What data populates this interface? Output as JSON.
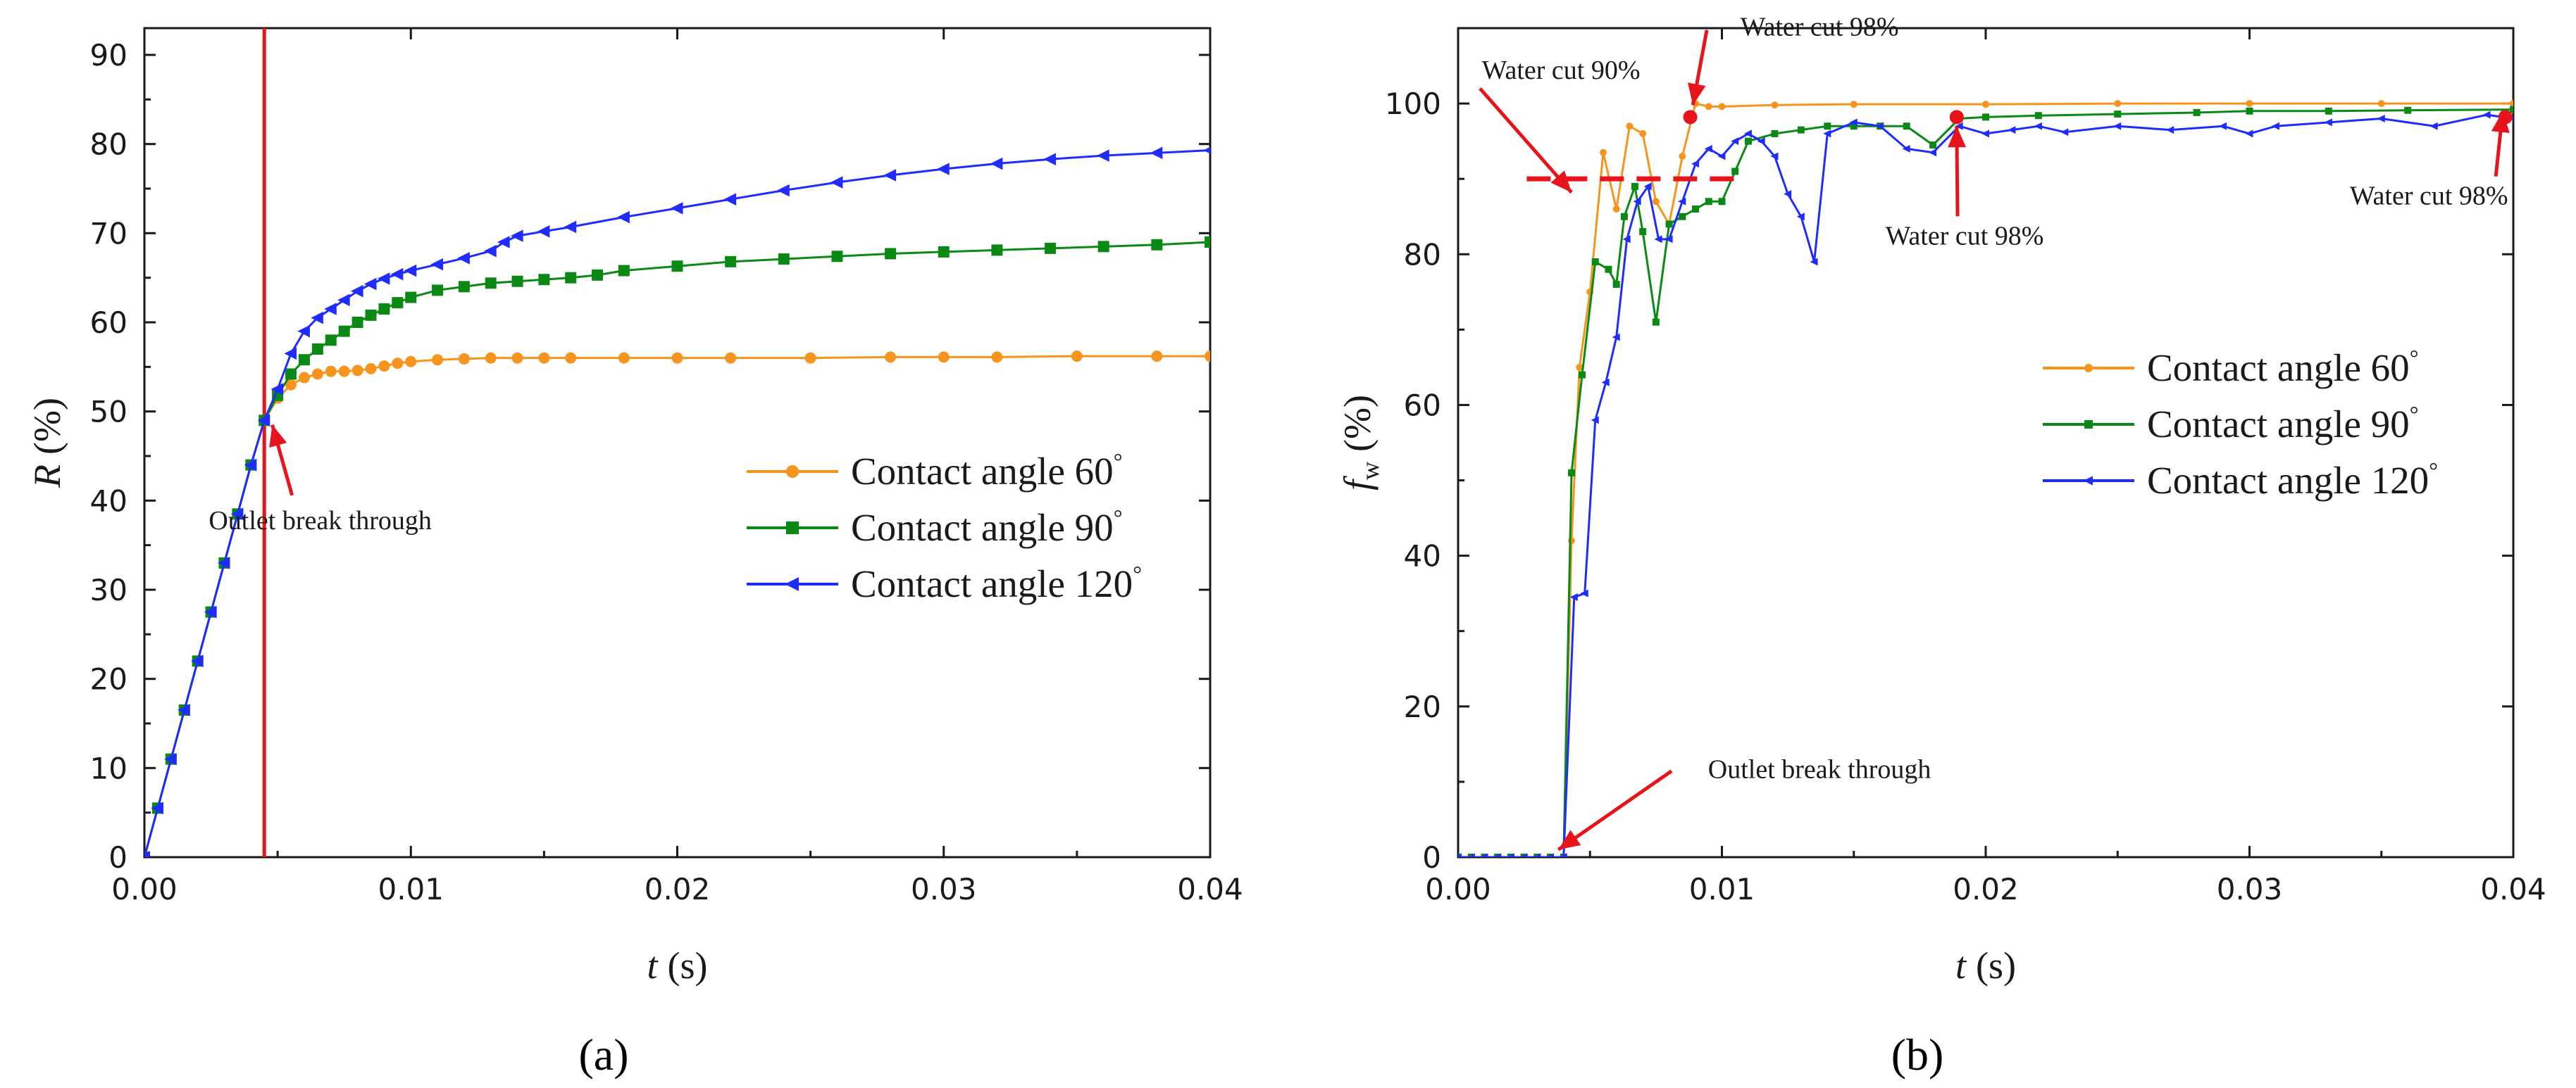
{
  "colors": {
    "series_60": "#f7941d",
    "series_90": "#0a8a14",
    "series_120": "#1f2bff",
    "marker_red": "#e8141b",
    "axis": "#1a1a1a"
  },
  "chart_data": [
    {
      "panel_label": "(a)",
      "type": "line",
      "title": "",
      "xlabel_italic": "t",
      "xlabel_unit": "(s)",
      "ylabel_italic": "R",
      "ylabel_unit": "(%)",
      "xlim": [
        0,
        0.04
      ],
      "ylim": [
        0,
        93
      ],
      "xticks": [
        0,
        0.01,
        0.02,
        0.03,
        0.04
      ],
      "xtick_labels": [
        "0.00",
        "0.01",
        "0.02",
        "0.03",
        "0.04"
      ],
      "yticks": [
        0,
        10,
        20,
        30,
        40,
        50,
        60,
        70,
        80,
        90
      ],
      "ytick_labels": [
        "0",
        "10",
        "20",
        "30",
        "40",
        "50",
        "60",
        "70",
        "80",
        "90"
      ],
      "legend_position": "center-right",
      "series": [
        {
          "name": "Contact angle 60",
          "color_key": "series_60",
          "marker": "circle",
          "x": [
            0,
            0.0005,
            0.001,
            0.0015,
            0.002,
            0.0025,
            0.003,
            0.0035,
            0.004,
            0.0045,
            0.005,
            0.0055,
            0.006,
            0.0065,
            0.007,
            0.0075,
            0.008,
            0.0085,
            0.009,
            0.0095,
            0.01,
            0.011,
            0.012,
            0.013,
            0.014,
            0.015,
            0.016,
            0.018,
            0.02,
            0.022,
            0.025,
            0.028,
            0.03,
            0.032,
            0.035,
            0.038,
            0.04
          ],
          "y": [
            0,
            5.5,
            11,
            16.5,
            22,
            27.5,
            33,
            38.5,
            44,
            49,
            51.5,
            53,
            53.8,
            54.2,
            54.5,
            54.5,
            54.6,
            54.8,
            55.1,
            55.4,
            55.6,
            55.8,
            55.9,
            56,
            56,
            56,
            56,
            56,
            56,
            56,
            56,
            56.1,
            56.1,
            56.1,
            56.2,
            56.2,
            56.2
          ]
        },
        {
          "name": "Contact angle 90",
          "color_key": "series_90",
          "marker": "square",
          "x": [
            0,
            0.0005,
            0.001,
            0.0015,
            0.002,
            0.0025,
            0.003,
            0.0035,
            0.004,
            0.0045,
            0.005,
            0.0055,
            0.006,
            0.0065,
            0.007,
            0.0075,
            0.008,
            0.0085,
            0.009,
            0.0095,
            0.01,
            0.011,
            0.012,
            0.013,
            0.014,
            0.015,
            0.016,
            0.017,
            0.018,
            0.02,
            0.022,
            0.024,
            0.026,
            0.028,
            0.03,
            0.032,
            0.034,
            0.036,
            0.038,
            0.04
          ],
          "y": [
            0,
            5.5,
            11,
            16.5,
            22,
            27.5,
            33,
            38.5,
            44,
            49,
            51.8,
            54.2,
            55.8,
            57,
            58,
            59,
            60,
            60.8,
            61.5,
            62.2,
            62.8,
            63.6,
            64,
            64.4,
            64.6,
            64.8,
            65,
            65.3,
            65.8,
            66.3,
            66.8,
            67.1,
            67.4,
            67.7,
            67.9,
            68.1,
            68.3,
            68.5,
            68.7,
            69
          ]
        },
        {
          "name": "Contact angle 120",
          "color_key": "series_120",
          "marker": "triangle-left",
          "x": [
            0,
            0.0005,
            0.001,
            0.0015,
            0.002,
            0.0025,
            0.003,
            0.0035,
            0.004,
            0.0045,
            0.005,
            0.0055,
            0.006,
            0.0065,
            0.007,
            0.0075,
            0.008,
            0.0085,
            0.009,
            0.0095,
            0.01,
            0.011,
            0.012,
            0.013,
            0.0135,
            0.014,
            0.015,
            0.016,
            0.018,
            0.02,
            0.022,
            0.024,
            0.026,
            0.028,
            0.03,
            0.032,
            0.034,
            0.036,
            0.038,
            0.04
          ],
          "y": [
            0,
            5.5,
            11,
            16.5,
            22,
            27.5,
            33,
            38.5,
            44,
            49,
            52.5,
            56.5,
            59,
            60.5,
            61.5,
            62.5,
            63.5,
            64.3,
            64.9,
            65.4,
            65.8,
            66.5,
            67.2,
            68,
            69,
            69.7,
            70.2,
            70.7,
            71.8,
            72.8,
            73.8,
            74.8,
            75.7,
            76.5,
            77.2,
            77.8,
            78.3,
            78.7,
            79,
            79.3
          ]
        }
      ],
      "vline_x": 0.0045,
      "annotations": [
        {
          "text": "Outlet break through",
          "target": [
            0.0048,
            48.5
          ],
          "text_at": [
            0.0066,
            36.8
          ]
        }
      ]
    },
    {
      "panel_label": "(b)",
      "type": "line",
      "title": "",
      "xlabel_italic": "t",
      "xlabel_unit": "(s)",
      "ylabel_italic": "f",
      "ylabel_sub": "w",
      "ylabel_unit": "(%)",
      "xlim": [
        0,
        0.04
      ],
      "ylim": [
        0,
        110
      ],
      "xticks": [
        0,
        0.01,
        0.02,
        0.03,
        0.04
      ],
      "xtick_labels": [
        "0.00",
        "0.01",
        "0.02",
        "0.03",
        "0.04"
      ],
      "yticks": [
        0,
        20,
        40,
        60,
        80,
        100
      ],
      "ytick_labels": [
        "0",
        "20",
        "40",
        "60",
        "80",
        "100"
      ],
      "legend_position": "center-right",
      "series": [
        {
          "name": "Contact angle 60",
          "color_key": "series_60",
          "marker": "circle",
          "x": [
            0,
            0.0005,
            0.001,
            0.0015,
            0.002,
            0.0025,
            0.003,
            0.0035,
            0.004,
            0.0043,
            0.0046,
            0.005,
            0.0055,
            0.006,
            0.0065,
            0.007,
            0.0075,
            0.008,
            0.0085,
            0.009,
            0.0095,
            0.01,
            0.012,
            0.015,
            0.02,
            0.025,
            0.03,
            0.035,
            0.04
          ],
          "y": [
            0,
            0,
            0,
            0,
            0,
            0,
            0,
            0,
            0,
            42,
            65,
            75,
            93.5,
            86,
            97,
            96,
            87,
            84,
            93,
            100,
            99.6,
            99.6,
            99.8,
            99.9,
            99.9,
            100,
            100,
            100,
            100
          ]
        },
        {
          "name": "Contact angle 90",
          "color_key": "series_90",
          "marker": "square",
          "x": [
            0,
            0.0005,
            0.001,
            0.0015,
            0.002,
            0.0025,
            0.003,
            0.0035,
            0.004,
            0.0043,
            0.0047,
            0.0052,
            0.0057,
            0.006,
            0.0063,
            0.0067,
            0.007,
            0.0075,
            0.008,
            0.0085,
            0.009,
            0.0095,
            0.01,
            0.0105,
            0.011,
            0.012,
            0.013,
            0.014,
            0.015,
            0.016,
            0.017,
            0.018,
            0.019,
            0.02,
            0.022,
            0.025,
            0.028,
            0.03,
            0.033,
            0.036,
            0.04
          ],
          "y": [
            0,
            0,
            0,
            0,
            0,
            0,
            0,
            0,
            0,
            51,
            64,
            79,
            78,
            76,
            85,
            89,
            83,
            71,
            84,
            85,
            86,
            87,
            87,
            91,
            95,
            96,
            96.5,
            97,
            97,
            97,
            97,
            94.5,
            98,
            98.2,
            98.4,
            98.6,
            98.8,
            99,
            99,
            99.1,
            99.2
          ]
        },
        {
          "name": "Contact angle 120",
          "color_key": "series_120",
          "marker": "triangle-left",
          "x": [
            0,
            0.0005,
            0.001,
            0.0015,
            0.002,
            0.0025,
            0.003,
            0.0035,
            0.004,
            0.0044,
            0.0048,
            0.0052,
            0.0056,
            0.006,
            0.0064,
            0.0068,
            0.0072,
            0.0076,
            0.008,
            0.0085,
            0.009,
            0.0095,
            0.01,
            0.0105,
            0.011,
            0.0115,
            0.012,
            0.0125,
            0.013,
            0.0135,
            0.014,
            0.015,
            0.016,
            0.017,
            0.018,
            0.019,
            0.02,
            0.021,
            0.022,
            0.023,
            0.025,
            0.027,
            0.029,
            0.03,
            0.031,
            0.033,
            0.035,
            0.037,
            0.039,
            0.04
          ],
          "y": [
            0,
            0,
            0,
            0,
            0,
            0,
            0,
            0,
            0,
            34.5,
            35,
            58,
            63,
            69,
            82,
            87,
            89,
            82,
            82,
            87,
            92,
            94,
            93,
            95,
            96,
            95,
            93,
            88,
            85,
            79,
            96,
            97.5,
            97,
            94,
            93.5,
            97,
            96,
            96.5,
            97,
            96.2,
            97,
            96.5,
            97,
            96,
            97,
            97.5,
            98,
            97,
            98.5,
            98
          ]
        }
      ],
      "dashed_hline": {
        "y": 90,
        "x_range": [
          0.0026,
          0.0108
        ]
      },
      "markers": [
        {
          "x": 0.0088,
          "y": 98.2
        },
        {
          "x": 0.0189,
          "y": 98.2
        },
        {
          "x": 0.0397,
          "y": 98.2
        }
      ],
      "annotations": [
        {
          "text": "Water cut 90%",
          "target": [
            0.0043,
            88.2
          ],
          "text_at": [
            0.0039,
            103.3
          ]
        },
        {
          "text": "Water cut 98%",
          "target": [
            0.0089,
            99.8
          ],
          "text_at": [
            0.0137,
            109
          ]
        },
        {
          "text": "Water cut 98%",
          "target": [
            0.0189,
            97
          ],
          "text_at": [
            0.0192,
            81.3
          ]
        },
        {
          "text": "Water cut 98%",
          "target": [
            0.0396,
            99
          ],
          "text_at": [
            0.0368,
            86.6
          ]
        },
        {
          "text": "Outlet break through",
          "target": [
            0.0038,
            1
          ],
          "text_at": [
            0.0137,
            10.5
          ]
        }
      ]
    }
  ],
  "legend_degree_symbol": "°"
}
